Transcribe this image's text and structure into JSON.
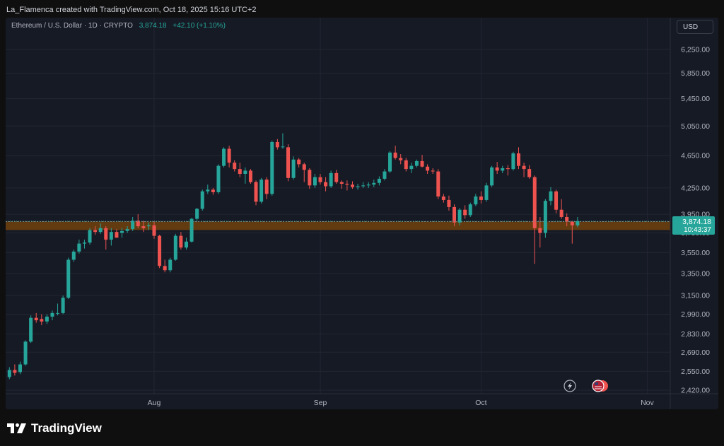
{
  "header": {
    "credit": "La_Flamenca created with TradingView.com, Oct 18, 2025 15:16 UTC+2"
  },
  "legend": {
    "symbol": "Ethereum / U.S. Dollar · 1D · CRYPTO",
    "price": "3,874.18",
    "change": "+42.10 (+1.10%)"
  },
  "currency_label": "USD",
  "price_badge": {
    "price": "3,874.18",
    "countdown": "10:43:37"
  },
  "footer": {
    "brand": "TradingView"
  },
  "colors": {
    "up": "#26a69a",
    "down": "#ef5350",
    "zone": "#6b3f10",
    "background": "#161a25",
    "grid": "#232632"
  },
  "chart_data": {
    "type": "candlestick",
    "title": "",
    "xlabel": "",
    "ylabel": "",
    "y_scale": "log",
    "ylim": [
      2370,
      6700
    ],
    "x_tick_labels": [
      "Aug",
      "Sep",
      "Oct",
      "Nov"
    ],
    "x_ticks": [
      "2025-08-01",
      "2025-09-01",
      "2025-10-01",
      "2025-11-01"
    ],
    "y_tick_labels": [
      "6,250.00",
      "5,850.00",
      "5,450.00",
      "5,050.00",
      "4,650.00",
      "4,250.00",
      "3,950.00",
      "3,750.00",
      "3,550.00",
      "3,350.00",
      "3,150.00",
      "2,990.00",
      "2,830.00",
      "2,690.00",
      "2,550.00",
      "2,420.00"
    ],
    "y_ticks": [
      6250,
      5850,
      5450,
      5050,
      4650,
      4250,
      3950,
      3750,
      3550,
      3350,
      3150,
      2990,
      2830,
      2690,
      2550,
      2420
    ],
    "support_zone": [
      3780,
      3870
    ],
    "last_price": 3874.18,
    "start_date": "2025-07-04",
    "candles": [
      {
        "o": 2505,
        "h": 2525,
        "l": 2480,
        "c": 2510
      },
      {
        "o": 2510,
        "h": 2580,
        "l": 2495,
        "c": 2560
      },
      {
        "o": 2560,
        "h": 2600,
        "l": 2520,
        "c": 2540
      },
      {
        "o": 2545,
        "h": 2620,
        "l": 2530,
        "c": 2600
      },
      {
        "o": 2600,
        "h": 2780,
        "l": 2590,
        "c": 2770
      },
      {
        "o": 2770,
        "h": 2980,
        "l": 2760,
        "c": 2960
      },
      {
        "o": 2960,
        "h": 3000,
        "l": 2920,
        "c": 2940
      },
      {
        "o": 2950,
        "h": 2990,
        "l": 2900,
        "c": 2930
      },
      {
        "o": 2930,
        "h": 2990,
        "l": 2910,
        "c": 2970
      },
      {
        "o": 2970,
        "h": 3020,
        "l": 2940,
        "c": 3000
      },
      {
        "o": 3000,
        "h": 3080,
        "l": 2980,
        "c": 3000
      },
      {
        "o": 3000,
        "h": 3150,
        "l": 2990,
        "c": 3130
      },
      {
        "o": 3130,
        "h": 3500,
        "l": 3120,
        "c": 3480
      },
      {
        "o": 3480,
        "h": 3580,
        "l": 3460,
        "c": 3560
      },
      {
        "o": 3560,
        "h": 3680,
        "l": 3540,
        "c": 3640
      },
      {
        "o": 3640,
        "h": 3680,
        "l": 3590,
        "c": 3650
      },
      {
        "o": 3650,
        "h": 3800,
        "l": 3630,
        "c": 3780
      },
      {
        "o": 3780,
        "h": 3820,
        "l": 3730,
        "c": 3760
      },
      {
        "o": 3760,
        "h": 3850,
        "l": 3740,
        "c": 3800
      },
      {
        "o": 3800,
        "h": 3820,
        "l": 3580,
        "c": 3680
      },
      {
        "o": 3680,
        "h": 3800,
        "l": 3620,
        "c": 3760
      },
      {
        "o": 3760,
        "h": 3790,
        "l": 3700,
        "c": 3700
      },
      {
        "o": 3750,
        "h": 3800,
        "l": 3700,
        "c": 3770
      },
      {
        "o": 3770,
        "h": 3820,
        "l": 3750,
        "c": 3790
      },
      {
        "o": 3790,
        "h": 3920,
        "l": 3770,
        "c": 3880
      },
      {
        "o": 3880,
        "h": 3950,
        "l": 3800,
        "c": 3820
      },
      {
        "o": 3820,
        "h": 3880,
        "l": 3760,
        "c": 3800
      },
      {
        "o": 3820,
        "h": 3860,
        "l": 3780,
        "c": 3830
      },
      {
        "o": 3830,
        "h": 3870,
        "l": 3690,
        "c": 3720
      },
      {
        "o": 3720,
        "h": 3730,
        "l": 3400,
        "c": 3420
      },
      {
        "o": 3420,
        "h": 3480,
        "l": 3360,
        "c": 3380
      },
      {
        "o": 3380,
        "h": 3500,
        "l": 3360,
        "c": 3480
      },
      {
        "o": 3480,
        "h": 3740,
        "l": 3470,
        "c": 3720
      },
      {
        "o": 3720,
        "h": 3760,
        "l": 3580,
        "c": 3600
      },
      {
        "o": 3600,
        "h": 3700,
        "l": 3580,
        "c": 3660
      },
      {
        "o": 3660,
        "h": 3910,
        "l": 3650,
        "c": 3900
      },
      {
        "o": 3900,
        "h": 4020,
        "l": 3880,
        "c": 4010
      },
      {
        "o": 4010,
        "h": 4230,
        "l": 3990,
        "c": 4210
      },
      {
        "o": 4210,
        "h": 4290,
        "l": 4180,
        "c": 4230
      },
      {
        "o": 4230,
        "h": 4250,
        "l": 4170,
        "c": 4200
      },
      {
        "o": 4200,
        "h": 4540,
        "l": 4180,
        "c": 4520
      },
      {
        "o": 4520,
        "h": 4760,
        "l": 4500,
        "c": 4740
      },
      {
        "o": 4740,
        "h": 4780,
        "l": 4500,
        "c": 4560
      },
      {
        "o": 4560,
        "h": 4590,
        "l": 4450,
        "c": 4480
      },
      {
        "o": 4480,
        "h": 4560,
        "l": 4380,
        "c": 4420
      },
      {
        "o": 4420,
        "h": 4500,
        "l": 4300,
        "c": 4460
      },
      {
        "o": 4460,
        "h": 4480,
        "l": 4300,
        "c": 4320
      },
      {
        "o": 4320,
        "h": 4340,
        "l": 4050,
        "c": 4090
      },
      {
        "o": 4090,
        "h": 4370,
        "l": 4070,
        "c": 4350
      },
      {
        "o": 4350,
        "h": 4380,
        "l": 4120,
        "c": 4180
      },
      {
        "o": 4180,
        "h": 4850,
        "l": 4160,
        "c": 4830
      },
      {
        "o": 4830,
        "h": 4870,
        "l": 4730,
        "c": 4760
      },
      {
        "o": 4760,
        "h": 4950,
        "l": 4740,
        "c": 4770
      },
      {
        "o": 4760,
        "h": 4800,
        "l": 4330,
        "c": 4370
      },
      {
        "o": 4370,
        "h": 4640,
        "l": 4350,
        "c": 4600
      },
      {
        "o": 4600,
        "h": 4620,
        "l": 4500,
        "c": 4540
      },
      {
        "o": 4540,
        "h": 4560,
        "l": 4320,
        "c": 4470
      },
      {
        "o": 4470,
        "h": 4490,
        "l": 4240,
        "c": 4280
      },
      {
        "o": 4280,
        "h": 4420,
        "l": 4250,
        "c": 4380
      },
      {
        "o": 4380,
        "h": 4420,
        "l": 4290,
        "c": 4320
      },
      {
        "o": 4320,
        "h": 4380,
        "l": 4210,
        "c": 4270
      },
      {
        "o": 4270,
        "h": 4460,
        "l": 4250,
        "c": 4430
      },
      {
        "o": 4430,
        "h": 4470,
        "l": 4300,
        "c": 4320
      },
      {
        "o": 4320,
        "h": 4340,
        "l": 4240,
        "c": 4300
      },
      {
        "o": 4300,
        "h": 4340,
        "l": 4220,
        "c": 4290
      },
      {
        "o": 4290,
        "h": 4330,
        "l": 4240,
        "c": 4260
      },
      {
        "o": 4260,
        "h": 4300,
        "l": 4230,
        "c": 4270
      },
      {
        "o": 4270,
        "h": 4320,
        "l": 4250,
        "c": 4280
      },
      {
        "o": 4280,
        "h": 4320,
        "l": 4250,
        "c": 4290
      },
      {
        "o": 4290,
        "h": 4350,
        "l": 4260,
        "c": 4310
      },
      {
        "o": 4310,
        "h": 4390,
        "l": 4280,
        "c": 4360
      },
      {
        "o": 4360,
        "h": 4480,
        "l": 4340,
        "c": 4450
      },
      {
        "o": 4450,
        "h": 4710,
        "l": 4430,
        "c": 4690
      },
      {
        "o": 4690,
        "h": 4780,
        "l": 4600,
        "c": 4620
      },
      {
        "o": 4620,
        "h": 4670,
        "l": 4540,
        "c": 4590
      },
      {
        "o": 4590,
        "h": 4620,
        "l": 4450,
        "c": 4480
      },
      {
        "o": 4480,
        "h": 4560,
        "l": 4430,
        "c": 4520
      },
      {
        "o": 4520,
        "h": 4600,
        "l": 4500,
        "c": 4580
      },
      {
        "o": 4580,
        "h": 4660,
        "l": 4500,
        "c": 4510
      },
      {
        "o": 4510,
        "h": 4540,
        "l": 4420,
        "c": 4460
      },
      {
        "o": 4460,
        "h": 4490,
        "l": 4420,
        "c": 4450
      },
      {
        "o": 4450,
        "h": 4480,
        "l": 4120,
        "c": 4150
      },
      {
        "o": 4150,
        "h": 4180,
        "l": 4080,
        "c": 4110
      },
      {
        "o": 4110,
        "h": 4160,
        "l": 3990,
        "c": 4030
      },
      {
        "o": 4030,
        "h": 4060,
        "l": 3820,
        "c": 3860
      },
      {
        "o": 3860,
        "h": 4020,
        "l": 3830,
        "c": 4000
      },
      {
        "o": 4000,
        "h": 4050,
        "l": 3900,
        "c": 3940
      },
      {
        "o": 3940,
        "h": 4080,
        "l": 3920,
        "c": 4060
      },
      {
        "o": 4060,
        "h": 4180,
        "l": 4040,
        "c": 4150
      },
      {
        "o": 4150,
        "h": 4210,
        "l": 4070,
        "c": 4110
      },
      {
        "o": 4110,
        "h": 4310,
        "l": 4090,
        "c": 4280
      },
      {
        "o": 4280,
        "h": 4520,
        "l": 4260,
        "c": 4500
      },
      {
        "o": 4500,
        "h": 4570,
        "l": 4420,
        "c": 4460
      },
      {
        "o": 4460,
        "h": 4520,
        "l": 4430,
        "c": 4490
      },
      {
        "o": 4490,
        "h": 4530,
        "l": 4400,
        "c": 4480
      },
      {
        "o": 4480,
        "h": 4700,
        "l": 4460,
        "c": 4680
      },
      {
        "o": 4680,
        "h": 4760,
        "l": 4480,
        "c": 4520
      },
      {
        "o": 4520,
        "h": 4560,
        "l": 4380,
        "c": 4480
      },
      {
        "o": 4480,
        "h": 4530,
        "l": 4360,
        "c": 4380
      },
      {
        "o": 4380,
        "h": 4400,
        "l": 3440,
        "c": 3800
      },
      {
        "o": 3800,
        "h": 3920,
        "l": 3600,
        "c": 3750
      },
      {
        "o": 3750,
        "h": 4120,
        "l": 3700,
        "c": 4100
      },
      {
        "o": 4100,
        "h": 4260,
        "l": 4050,
        "c": 4210
      },
      {
        "o": 4210,
        "h": 4230,
        "l": 3960,
        "c": 4000
      },
      {
        "o": 4000,
        "h": 4120,
        "l": 3900,
        "c": 3920
      },
      {
        "o": 3920,
        "h": 3960,
        "l": 3820,
        "c": 3870
      },
      {
        "o": 3870,
        "h": 3880,
        "l": 3640,
        "c": 3830
      },
      {
        "o": 3830,
        "h": 3920,
        "l": 3810,
        "c": 3874.18
      }
    ]
  }
}
